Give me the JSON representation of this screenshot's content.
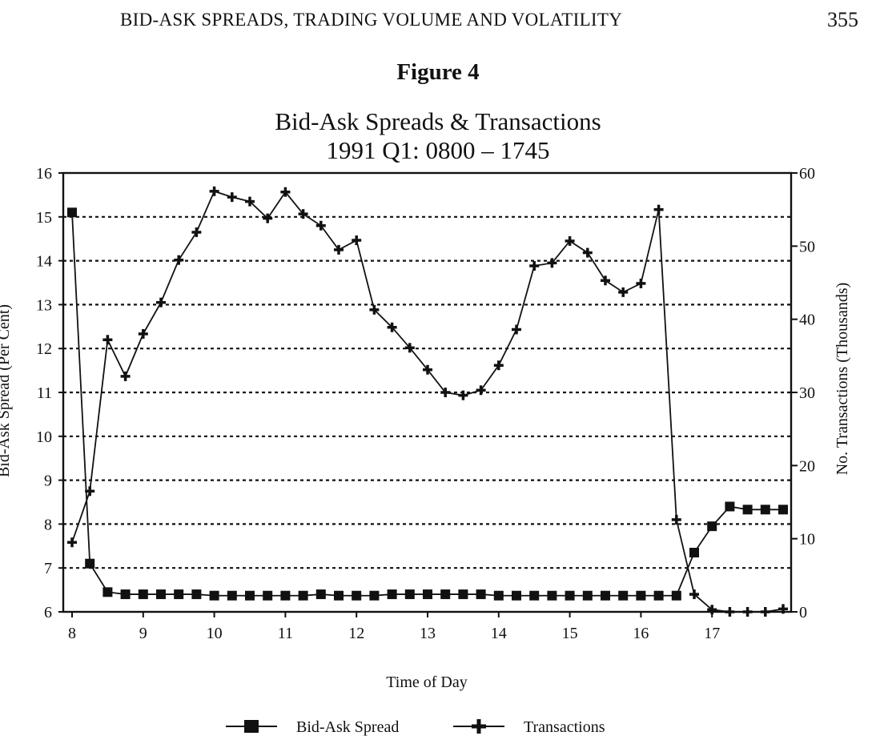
{
  "header": {
    "running_head": "BID-ASK SPREADS, TRADING VOLUME AND VOLATILITY",
    "page_number": "355"
  },
  "figure_label": "Figure 4",
  "chart_data": {
    "type": "line",
    "title": "Bid-Ask Spreads & Transactions",
    "subtitle": "1991 Q1: 0800 – 1745",
    "xlabel": "Time of Day",
    "ylabel_left": "Bid-Ask Spread (Per Cent)",
    "ylabel_right": "No. Transactions (Thousands)",
    "x_ticks": [
      8,
      9,
      10,
      11,
      12,
      13,
      14,
      15,
      16,
      17
    ],
    "xlim": [
      8,
      18
    ],
    "ylim_left": [
      6,
      16
    ],
    "ylim_right": [
      0,
      60
    ],
    "y_ticks_left": [
      6,
      7,
      8,
      9,
      10,
      11,
      12,
      13,
      14,
      15,
      16
    ],
    "y_ticks_right": [
      0,
      10,
      20,
      30,
      40,
      50,
      60
    ],
    "grid": "horizontal dashed",
    "legend_position": "bottom",
    "x": [
      8.0,
      8.25,
      8.5,
      8.75,
      9.0,
      9.25,
      9.5,
      9.75,
      10.0,
      10.25,
      10.5,
      10.75,
      11.0,
      11.25,
      11.5,
      11.75,
      12.0,
      12.25,
      12.5,
      12.75,
      13.0,
      13.25,
      13.5,
      13.75,
      14.0,
      14.25,
      14.5,
      14.75,
      15.0,
      15.25,
      15.5,
      15.75,
      16.0,
      16.25,
      16.5,
      16.75,
      17.0,
      17.25,
      17.5,
      17.75,
      18.0
    ],
    "series": [
      {
        "name": "Bid-Ask Spread",
        "axis": "left",
        "marker": "square",
        "values": [
          15.1,
          7.1,
          6.45,
          6.4,
          6.4,
          6.4,
          6.4,
          6.4,
          6.37,
          6.37,
          6.37,
          6.37,
          6.37,
          6.37,
          6.4,
          6.37,
          6.37,
          6.37,
          6.4,
          6.4,
          6.4,
          6.4,
          6.4,
          6.4,
          6.37,
          6.37,
          6.37,
          6.37,
          6.37,
          6.37,
          6.37,
          6.37,
          6.37,
          6.37,
          6.37,
          7.35,
          7.95,
          8.4,
          8.33,
          8.33,
          8.33
        ]
      },
      {
        "name": "Transactions",
        "axis": "right",
        "marker": "plus",
        "values": [
          9.5,
          16.5,
          37.2,
          32.2,
          38.0,
          42.3,
          48.1,
          51.9,
          57.5,
          56.7,
          56.1,
          53.8,
          57.4,
          54.4,
          52.8,
          49.5,
          50.8,
          41.3,
          38.9,
          36.1,
          33.1,
          30.0,
          29.6,
          30.3,
          33.7,
          38.6,
          47.3,
          47.7,
          50.7,
          49.1,
          45.3,
          43.7,
          44.9,
          55.0,
          12.6,
          2.4,
          0.3,
          0.0,
          0.0,
          0.0,
          0.4
        ]
      }
    ]
  }
}
